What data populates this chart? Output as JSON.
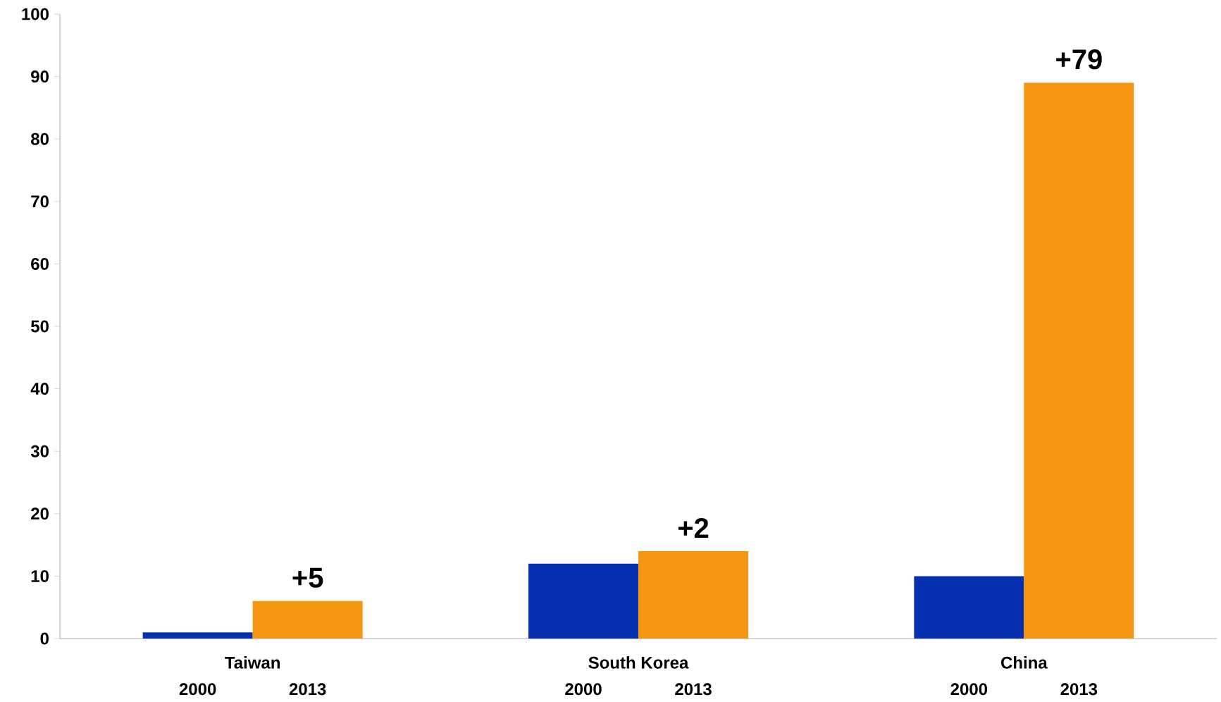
{
  "chart_data": {
    "type": "bar",
    "categories": [
      "Taiwan",
      "South Korea",
      "China"
    ],
    "series": [
      {
        "name": "2000",
        "color": "#0530b0",
        "values": [
          1,
          12,
          10
        ]
      },
      {
        "name": "2013",
        "color": "#f39712",
        "values": [
          6,
          14,
          89
        ]
      }
    ],
    "ylim": [
      0,
      100
    ],
    "yticks": [
      0,
      10,
      20,
      30,
      40,
      50,
      60,
      70,
      80,
      90,
      100
    ],
    "grid": false,
    "annotations": [
      {
        "text": "+5",
        "x": "Taiwan",
        "y": 6
      },
      {
        "text": "+2",
        "x": "South Korea",
        "y": 14
      },
      {
        "text": "+79",
        "x": "China",
        "y": 89
      }
    ]
  }
}
